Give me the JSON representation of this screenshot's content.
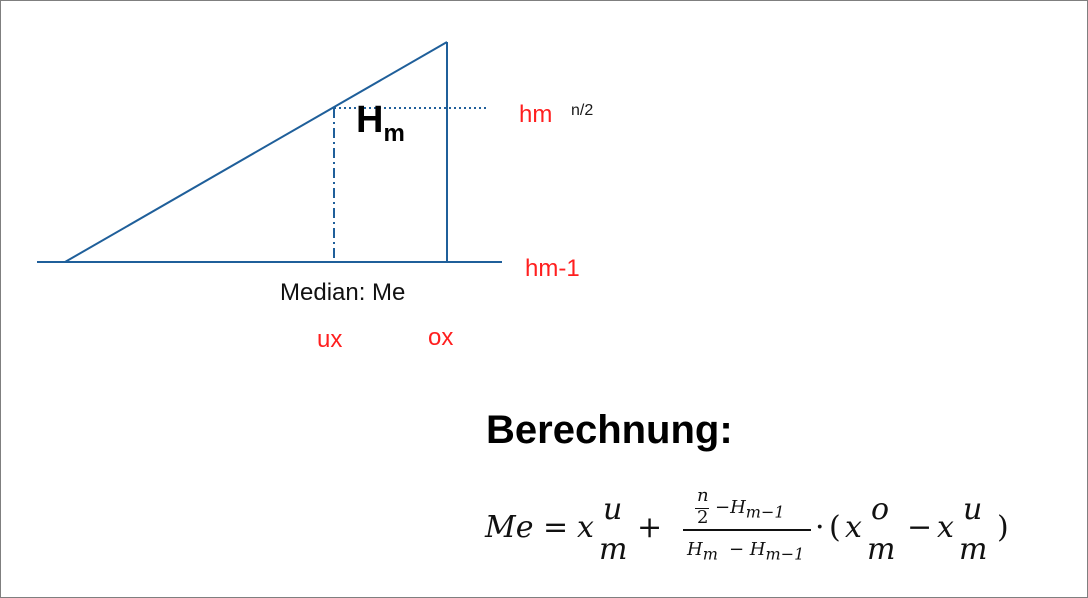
{
  "labels": {
    "hm_top": "hm",
    "hm_top_sup": "n/2",
    "hm_minus_1": "hm-1",
    "median": "Median: Me",
    "ux": "ux",
    "ox": "ox",
    "H": "H",
    "H_sub": "m"
  },
  "heading": "Berechnung:",
  "formula": {
    "lhs": "Me",
    "eq": "=",
    "x": "x",
    "u": "u",
    "o": "o",
    "m": "m",
    "plus": "+",
    "num_n": "n",
    "num_2": "2",
    "num_rest": "−H",
    "num_sub": "m−1",
    "den_H1": "H",
    "den_H1_sub": "m",
    "den_minus": "− H",
    "den_sub": "m−1",
    "dot": "·",
    "lparen": "(",
    "minus": "−",
    "rparen": ")"
  },
  "colors": {
    "line": "#1f5f9a",
    "label_red": "#ff1f1f"
  }
}
